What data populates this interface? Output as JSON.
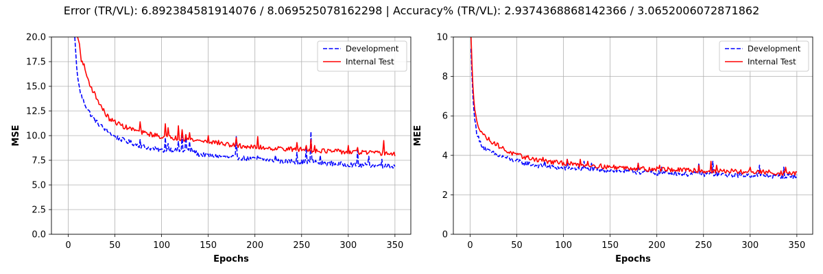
{
  "figure": {
    "title": "Error (TR/VL): 6.892384581914076 / 8.069525078162298 | Accuracy% (TR/VL): 2.9374368868142366 / 3.0652006072871862"
  },
  "chart_data": [
    {
      "type": "line",
      "xlabel": "Epochs",
      "ylabel": "MSE",
      "xlim": [
        -18,
        367
      ],
      "ylim": [
        0,
        20
      ],
      "xticks": [
        0,
        50,
        100,
        150,
        200,
        250,
        300,
        350
      ],
      "yticks": [
        0.0,
        2.5,
        5.0,
        7.5,
        10.0,
        12.5,
        15.0,
        17.5,
        20.0
      ],
      "ytick_labels": [
        "0.0",
        "2.5",
        "5.0",
        "7.5",
        "10.0",
        "12.5",
        "15.0",
        "17.5",
        "20.0"
      ],
      "grid": true,
      "legend": "top-right",
      "series": [
        {
          "name": "Development",
          "color": "#0000ff",
          "style": "dashed",
          "x": [
            7,
            8,
            9,
            10,
            12,
            15,
            20,
            25,
            30,
            35,
            40,
            45,
            50,
            60,
            70,
            80,
            90,
            100,
            110,
            120,
            130,
            140,
            150,
            160,
            170,
            180,
            190,
            200,
            210,
            220,
            230,
            240,
            250,
            260,
            270,
            280,
            290,
            300,
            310,
            320,
            330,
            340,
            350
          ],
          "y": [
            20,
            18.5,
            17,
            16,
            14.8,
            13.8,
            12.8,
            12.0,
            11.4,
            11.0,
            10.6,
            10.2,
            9.9,
            9.5,
            9.2,
            8.9,
            8.7,
            8.5,
            8.6,
            8.4,
            8.6,
            8.1,
            8.0,
            7.9,
            7.8,
            7.8,
            7.7,
            7.6,
            7.6,
            7.5,
            7.4,
            7.4,
            7.3,
            7.4,
            7.2,
            7.2,
            7.1,
            7.1,
            7.0,
            7.0,
            7.0,
            6.9,
            6.9
          ],
          "spikes": [
            [
              44,
              10.4
            ],
            [
              77,
              9.6
            ],
            [
              104,
              9.8
            ],
            [
              107,
              9.2
            ],
            [
              118,
              9.4
            ],
            [
              122,
              10.0
            ],
            [
              126,
              10.1
            ],
            [
              130,
              9.4
            ],
            [
              180,
              9.9
            ],
            [
              203,
              8.0
            ],
            [
              222,
              8.0
            ],
            [
              245,
              8.3
            ],
            [
              255,
              8.8
            ],
            [
              260,
              10.4
            ],
            [
              270,
              8.0
            ],
            [
              310,
              8.5
            ],
            [
              322,
              7.9
            ],
            [
              336,
              7.6
            ],
            [
              343,
              7.2
            ]
          ]
        },
        {
          "name": "Internal Test",
          "color": "#ff0000",
          "style": "solid",
          "x": [
            10,
            12,
            14,
            16,
            20,
            25,
            30,
            35,
            40,
            45,
            50,
            60,
            70,
            80,
            90,
            100,
            110,
            120,
            130,
            140,
            150,
            160,
            170,
            180,
            190,
            200,
            210,
            220,
            230,
            240,
            250,
            260,
            270,
            280,
            290,
            300,
            310,
            320,
            330,
            340,
            350
          ],
          "y": [
            20,
            19.3,
            17.5,
            17.4,
            16.0,
            14.8,
            13.9,
            13.0,
            12.2,
            11.6,
            11.4,
            10.9,
            10.6,
            10.3,
            10.1,
            9.9,
            9.8,
            9.7,
            9.6,
            9.5,
            9.4,
            9.3,
            9.1,
            9.0,
            8.9,
            8.8,
            8.8,
            8.7,
            8.7,
            8.6,
            8.6,
            8.5,
            8.5,
            8.4,
            8.4,
            8.3,
            8.3,
            8.3,
            8.2,
            8.2,
            8.1
          ],
          "spikes": [
            [
              77,
              11.4
            ],
            [
              104,
              11.2
            ],
            [
              107,
              10.8
            ],
            [
              118,
              11.0
            ],
            [
              122,
              10.6
            ],
            [
              126,
              10.1
            ],
            [
              130,
              10.3
            ],
            [
              150,
              10.0
            ],
            [
              180,
              9.8
            ],
            [
              203,
              9.9
            ],
            [
              245,
              9.3
            ],
            [
              255,
              9.0
            ],
            [
              260,
              9.6
            ],
            [
              264,
              9.0
            ],
            [
              300,
              9.0
            ],
            [
              310,
              8.8
            ],
            [
              338,
              9.5
            ]
          ]
        }
      ]
    },
    {
      "type": "line",
      "xlabel": "Epochs",
      "ylabel": "MEE",
      "xlim": [
        -18,
        367
      ],
      "ylim": [
        0,
        10
      ],
      "xticks": [
        0,
        50,
        100,
        150,
        200,
        250,
        300,
        350
      ],
      "yticks": [
        0,
        2,
        4,
        6,
        8,
        10
      ],
      "ytick_labels": [
        "0",
        "2",
        "4",
        "6",
        "8",
        "10"
      ],
      "grid": true,
      "legend": "top-right",
      "series": [
        {
          "name": "Development",
          "color": "#0000ff",
          "style": "dashed",
          "x": [
            1,
            2,
            3,
            4,
            5,
            7,
            10,
            15,
            20,
            30,
            40,
            50,
            60,
            70,
            80,
            90,
            100,
            110,
            120,
            130,
            140,
            150,
            160,
            170,
            180,
            190,
            200,
            210,
            220,
            230,
            240,
            250,
            260,
            270,
            280,
            290,
            300,
            310,
            320,
            330,
            340,
            350
          ],
          "y": [
            9.4,
            8.0,
            7.0,
            6.3,
            5.8,
            5.2,
            4.7,
            4.4,
            4.2,
            4.0,
            3.85,
            3.7,
            3.6,
            3.5,
            3.45,
            3.4,
            3.35,
            3.35,
            3.3,
            3.3,
            3.25,
            3.25,
            3.2,
            3.2,
            3.15,
            3.15,
            3.1,
            3.1,
            3.1,
            3.05,
            3.05,
            3.05,
            3.05,
            3.0,
            3.0,
            3.0,
            3.0,
            3.0,
            2.95,
            2.95,
            2.95,
            2.95
          ],
          "spikes": [
            [
              80,
              3.7
            ],
            [
              104,
              3.8
            ],
            [
              122,
              3.7
            ],
            [
              130,
              3.6
            ],
            [
              180,
              3.6
            ],
            [
              205,
              3.4
            ],
            [
              245,
              3.6
            ],
            [
              260,
              3.7
            ],
            [
              310,
              3.5
            ],
            [
              336,
              3.4
            ]
          ]
        },
        {
          "name": "Internal Test",
          "color": "#ff0000",
          "style": "solid",
          "x": [
            1,
            2,
            3,
            4,
            5,
            7,
            10,
            15,
            20,
            30,
            40,
            50,
            60,
            70,
            80,
            90,
            100,
            110,
            120,
            130,
            140,
            150,
            160,
            170,
            180,
            190,
            200,
            210,
            220,
            230,
            240,
            250,
            260,
            270,
            280,
            290,
            300,
            310,
            320,
            330,
            340,
            350
          ],
          "y": [
            10,
            8.6,
            7.5,
            6.8,
            6.3,
            5.7,
            5.4,
            5.0,
            4.8,
            4.5,
            4.2,
            4.0,
            3.9,
            3.8,
            3.7,
            3.65,
            3.6,
            3.55,
            3.5,
            3.5,
            3.45,
            3.4,
            3.4,
            3.35,
            3.35,
            3.3,
            3.3,
            3.3,
            3.25,
            3.25,
            3.25,
            3.2,
            3.2,
            3.2,
            3.2,
            3.15,
            3.15,
            3.15,
            3.15,
            3.1,
            3.1,
            3.1
          ],
          "spikes": [
            [
              78,
              3.9
            ],
            [
              104,
              3.8
            ],
            [
              118,
              3.8
            ],
            [
              126,
              3.7
            ],
            [
              180,
              3.6
            ],
            [
              203,
              3.5
            ],
            [
              245,
              3.5
            ],
            [
              258,
              3.7
            ],
            [
              264,
              3.5
            ],
            [
              300,
              3.4
            ],
            [
              338,
              3.4
            ]
          ]
        }
      ]
    }
  ]
}
